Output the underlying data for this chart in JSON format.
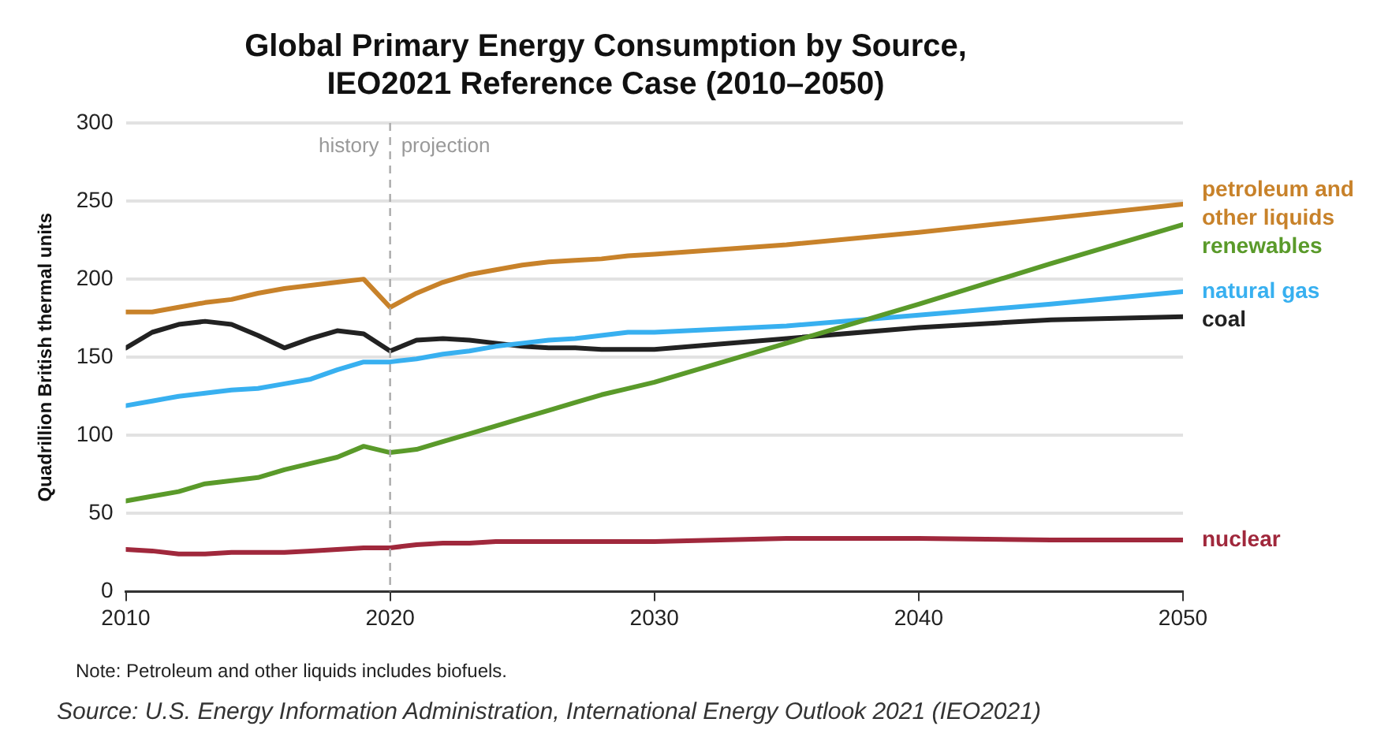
{
  "chart_data": {
    "type": "line",
    "title": "Global Primary Energy Consumption by Source, IEO2021 Reference Case (2010–2050)",
    "ylabel": "Quadrillion British thermal units",
    "xlim": [
      2010,
      2050
    ],
    "xticks": [
      2010,
      2020,
      2030,
      2040,
      2050
    ],
    "ylim": [
      0,
      300
    ],
    "yticks": [
      0,
      50,
      100,
      150,
      200,
      250,
      300
    ],
    "grid": "y",
    "legend": false,
    "marker": "none",
    "line_style": "solid",
    "x": [
      2010,
      2011,
      2012,
      2013,
      2014,
      2015,
      2016,
      2017,
      2018,
      2019,
      2020,
      2021,
      2022,
      2023,
      2024,
      2025,
      2026,
      2027,
      2028,
      2029,
      2030,
      2035,
      2040,
      2045,
      2050
    ],
    "series": [
      {
        "name": "petroleum and other liquids",
        "color": "#c8822a",
        "values": [
          179,
          179,
          182,
          185,
          187,
          191,
          194,
          196,
          198,
          200,
          182,
          191,
          198,
          203,
          206,
          209,
          211,
          212,
          213,
          215,
          216,
          222,
          230,
          239,
          248
        ]
      },
      {
        "name": "renewables",
        "color": "#5a9a2a",
        "values": [
          58,
          61,
          64,
          69,
          71,
          73,
          78,
          82,
          86,
          93,
          89,
          91,
          96,
          101,
          106,
          111,
          116,
          121,
          126,
          130,
          134,
          159,
          184,
          210,
          235
        ]
      },
      {
        "name": "natural gas",
        "color": "#38b0f0",
        "values": [
          119,
          122,
          125,
          127,
          129,
          130,
          133,
          136,
          142,
          147,
          147,
          149,
          152,
          154,
          157,
          159,
          161,
          162,
          164,
          166,
          166,
          170,
          177,
          184,
          192
        ]
      },
      {
        "name": "coal",
        "color": "#222222",
        "values": [
          156,
          166,
          171,
          173,
          171,
          164,
          156,
          162,
          167,
          165,
          154,
          161,
          162,
          161,
          159,
          157,
          156,
          156,
          155,
          155,
          155,
          162,
          169,
          174,
          176
        ]
      },
      {
        "name": "nuclear",
        "color": "#a0283c",
        "values": [
          27,
          26,
          24,
          24,
          25,
          25,
          25,
          26,
          27,
          28,
          28,
          30,
          31,
          31,
          32,
          32,
          32,
          32,
          32,
          32,
          32,
          34,
          34,
          33,
          33
        ]
      }
    ],
    "ref_lines": [
      {
        "axis": "x",
        "value": 2020,
        "color": "#aaaaaa",
        "line_style": "dashed"
      }
    ],
    "annotations": [
      {
        "text": "history",
        "x": 2020,
        "y": 285
      },
      {
        "text": "projection",
        "x": 2020,
        "y": 285
      },
      "Note: Petroleum and other liquids includes biofuels.",
      "Source: U.S. Energy Information Administration, International Energy Outlook 2021 (IEO2021)"
    ]
  }
}
